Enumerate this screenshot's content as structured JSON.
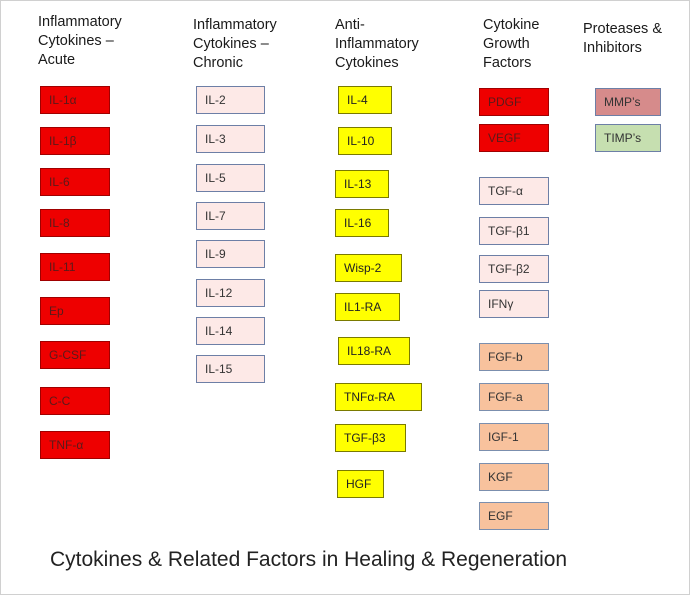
{
  "columns": [
    {
      "heading": "Inflammatory\nCytokines –\nAcute",
      "items": [
        "IL-1α",
        "IL-1β",
        "IL-6",
        "IL-8",
        "IL-11",
        "Ep",
        "G-CSF",
        "C-C",
        "TNF-α"
      ]
    },
    {
      "heading": "Inflammatory\nCytokines –\nChronic",
      "items": [
        "IL-2",
        "IL-3",
        "IL-5",
        "IL-7",
        "IL-9",
        "IL-12",
        "IL-14",
        "IL-15"
      ]
    },
    {
      "heading": "Anti-\nInflammatory\nCytokines",
      "items": [
        "IL-4",
        "IL-10",
        "IL-13",
        "IL-16",
        "Wisp-2",
        "IL1-RA",
        "IL18-RA",
        "TNFα-RA",
        "TGF-β3",
        "HGF"
      ]
    },
    {
      "heading": "Cytokine\nGrowth\nFactors",
      "groups": [
        [
          "PDGF",
          "VEGF"
        ],
        [
          "TGF-α",
          "TGF-β1",
          "TGF-β2",
          "IFNγ"
        ],
        [
          "FGF-b",
          "FGF-a",
          "IGF-1",
          "KGF",
          "EGF"
        ]
      ]
    },
    {
      "heading": "Proteases &\nInhibitors",
      "items": [
        "MMP’s",
        "TIMP’s"
      ]
    }
  ],
  "footer": "Cytokines & Related Factors in Healing & Regeneration",
  "colors": {
    "acute": "#ee0000",
    "chronic": "#fde9e7",
    "anti": "#ffff00",
    "growth_high": "#ee0000",
    "growth_mid": "#fde9e7",
    "growth_low": "#f8c29d",
    "mmp": "#d68b8b",
    "timp": "#c6dfb0"
  }
}
